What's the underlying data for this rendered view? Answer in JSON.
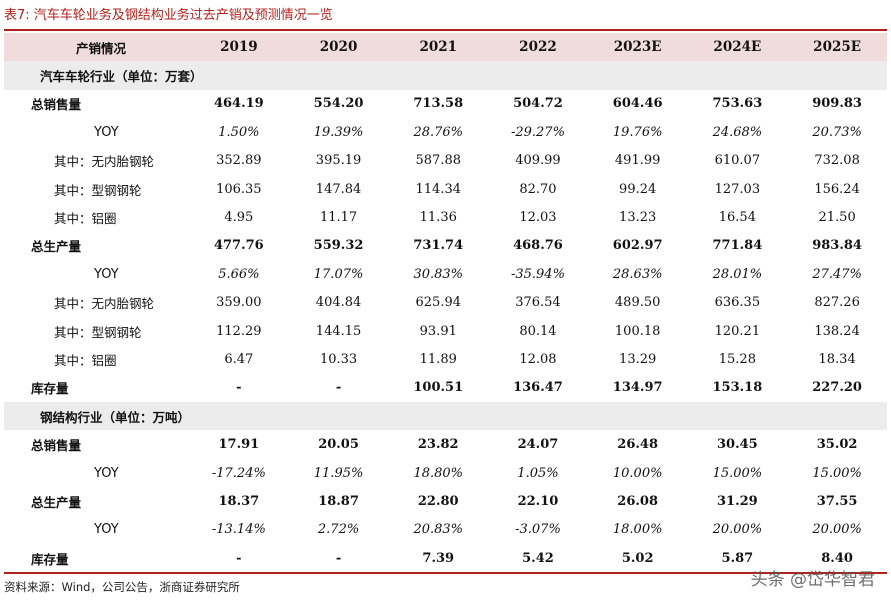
{
  "title": "表7:  汽车车轮业务及钢结构业务过去产销及预测情况一览",
  "columns": [
    "产销情况",
    "2019",
    "2020",
    "2021",
    "2022",
    "2023E",
    "2024E",
    "2025E"
  ],
  "sections": [
    {
      "heading": "汽车车轮行业（单位：万套）",
      "rows": [
        {
          "type": "total",
          "label": "总销售量",
          "values": [
            "464.19",
            "554.20",
            "713.58",
            "504.72",
            "604.46",
            "753.63",
            "909.83"
          ]
        },
        {
          "type": "yoy",
          "label": "YOY",
          "values": [
            "1.50%",
            "19.39%",
            "28.76%",
            "-29.27%",
            "19.76%",
            "24.68%",
            "20.73%"
          ]
        },
        {
          "type": "sub",
          "label": "其中：无内胎钢轮",
          "values": [
            "352.89",
            "395.19",
            "587.88",
            "409.99",
            "491.99",
            "610.07",
            "732.08"
          ]
        },
        {
          "type": "sub",
          "label": "其中：型钢钢轮",
          "values": [
            "106.35",
            "147.84",
            "114.34",
            "82.70",
            "99.24",
            "127.03",
            "156.24"
          ]
        },
        {
          "type": "sub",
          "label": "其中：铝圈",
          "values": [
            "4.95",
            "11.17",
            "11.36",
            "12.03",
            "13.23",
            "16.54",
            "21.50"
          ]
        },
        {
          "type": "total",
          "label": "总生产量",
          "values": [
            "477.76",
            "559.32",
            "731.74",
            "468.76",
            "602.97",
            "771.84",
            "983.84"
          ]
        },
        {
          "type": "yoy",
          "label": "YOY",
          "values": [
            "5.66%",
            "17.07%",
            "30.83%",
            "-35.94%",
            "28.63%",
            "28.01%",
            "27.47%"
          ]
        },
        {
          "type": "sub",
          "label": "其中：无内胎钢轮",
          "values": [
            "359.00",
            "404.84",
            "625.94",
            "376.54",
            "489.50",
            "636.35",
            "827.26"
          ]
        },
        {
          "type": "sub",
          "label": "其中：型钢钢轮",
          "values": [
            "112.29",
            "144.15",
            "93.91",
            "80.14",
            "100.18",
            "120.21",
            "138.24"
          ]
        },
        {
          "type": "sub",
          "label": "其中：铝圈",
          "values": [
            "6.47",
            "10.33",
            "11.89",
            "12.08",
            "13.29",
            "15.28",
            "18.34"
          ]
        },
        {
          "type": "total",
          "label": "库存量",
          "values": [
            "-",
            "-",
            "100.51",
            "136.47",
            "134.97",
            "153.18",
            "227.20"
          ]
        }
      ]
    },
    {
      "heading": "钢结构行业（单位：万吨）",
      "rows": [
        {
          "type": "total",
          "label": "总销售量",
          "values": [
            "17.91",
            "20.05",
            "23.82",
            "24.07",
            "26.48",
            "30.45",
            "35.02"
          ]
        },
        {
          "type": "yoy",
          "label": "YOY",
          "values": [
            "-17.24%",
            "11.95%",
            "18.80%",
            "1.05%",
            "10.00%",
            "15.00%",
            "15.00%"
          ]
        },
        {
          "type": "total",
          "label": "总生产量",
          "values": [
            "18.37",
            "18.87",
            "22.80",
            "22.10",
            "26.08",
            "31.29",
            "37.55"
          ]
        },
        {
          "type": "yoy",
          "label": "YOY",
          "values": [
            "-13.14%",
            "2.72%",
            "20.83%",
            "-3.07%",
            "18.00%",
            "20.00%",
            "20.00%"
          ]
        },
        {
          "type": "total",
          "label": "库存量",
          "values": [
            "-",
            "-",
            "7.39",
            "5.42",
            "5.02",
            "5.87",
            "8.40"
          ]
        }
      ]
    }
  ],
  "footer": "资料来源：Wind，公司公告，浙商证券研究所",
  "watermark": "头条 @岱华智君",
  "colors": {
    "accent": "#b3211c",
    "header_bg": "#f0dcdc",
    "section_bg": "#ececec"
  }
}
